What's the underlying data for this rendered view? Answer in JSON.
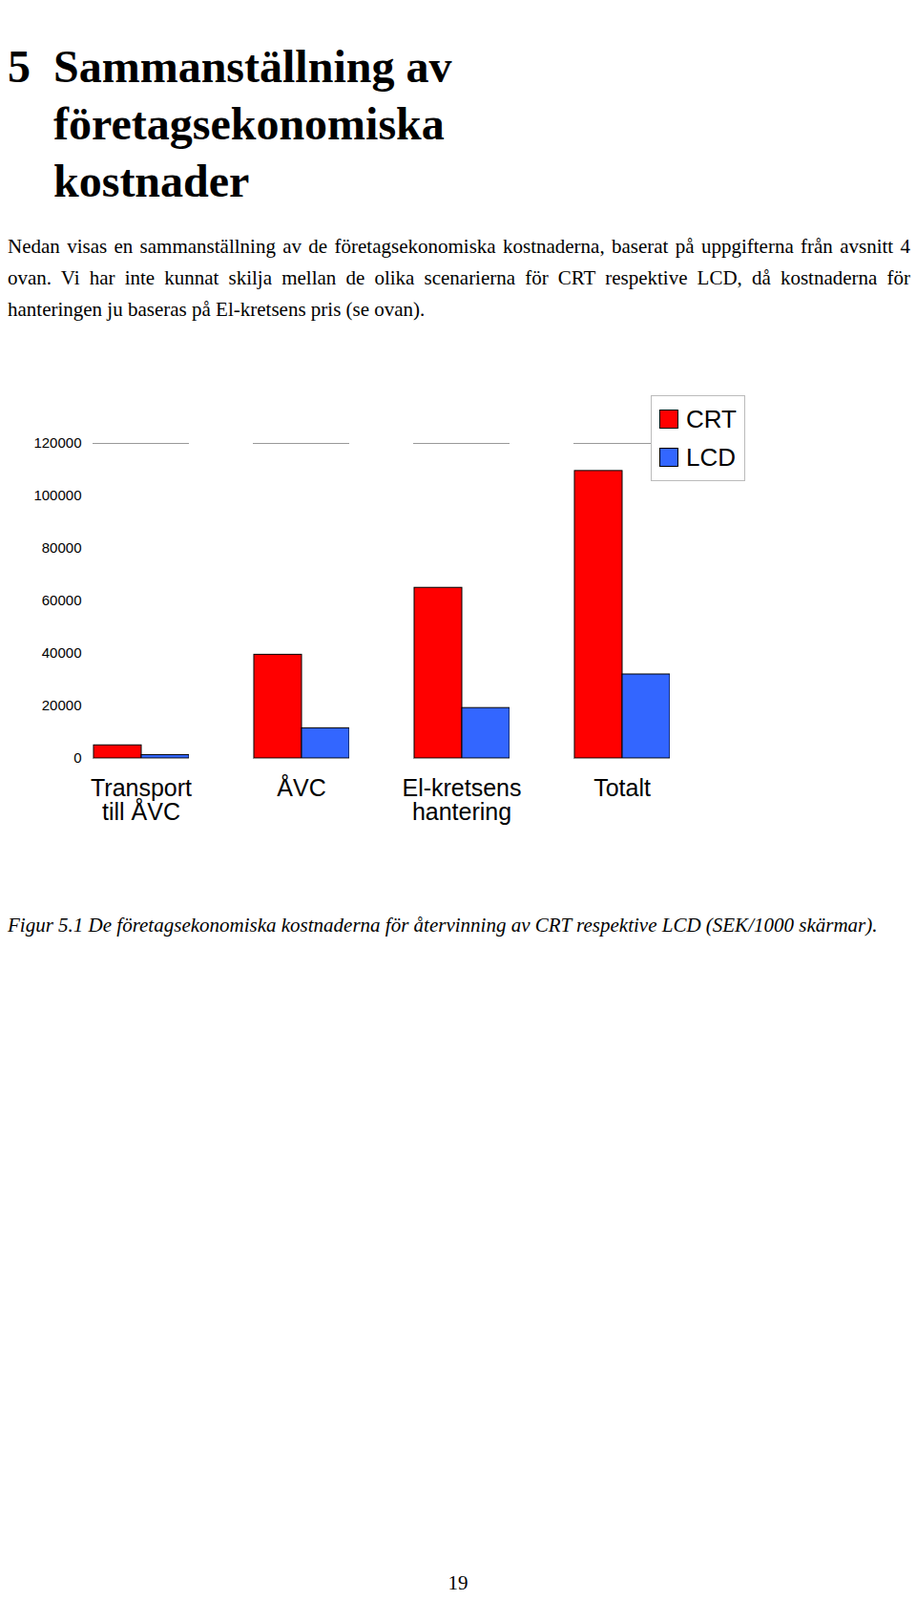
{
  "heading": {
    "number": "5",
    "title": "Sammanställning av företagsekonomiska kostnader"
  },
  "paragraph": "Nedan visas en sammanställning av de företagsekonomiska kostnaderna, baserat på uppgifterna från avsnitt 4 ovan. Vi har inte kunnat skilja mellan de olika scenarierna för CRT respektive LCD, då kostnaderna för hanteringen ju baseras på El-kretsens pris (se ovan).",
  "chart_data": {
    "type": "bar",
    "categories": [
      "Transport till ÅVC",
      "ÅVC",
      "El-kretsens hantering",
      "Totalt"
    ],
    "series": [
      {
        "name": "CRT",
        "color": "#ff0000",
        "values": [
          5000,
          39500,
          65000,
          109500
        ]
      },
      {
        "name": "LCD",
        "color": "#3366ff",
        "values": [
          1300,
          11500,
          19200,
          32000
        ]
      }
    ],
    "ylim": [
      0,
      120000
    ],
    "yticks": [
      0,
      20000,
      40000,
      60000,
      80000,
      100000,
      120000
    ],
    "grid": false,
    "legend": "top-right"
  },
  "caption": "Figur 5.1 De företagsekonomiska kostnaderna för återvinning av CRT respektive LCD (SEK/1000 skärmar).",
  "page_number": "19"
}
